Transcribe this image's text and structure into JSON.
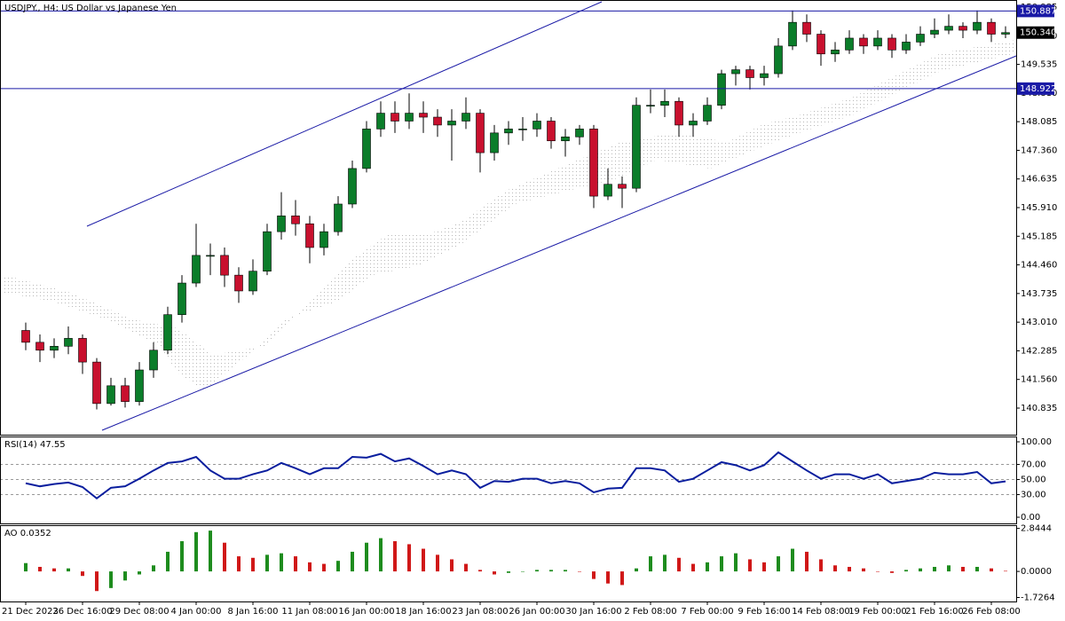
{
  "chart_data": [
    {
      "type": "candlestick",
      "title": "USDJPY., H4:  US Dollar vs Japanese Yen",
      "categories": [
        "21 Dec 2023",
        null,
        null,
        null,
        "26 Dec 16:00",
        null,
        null,
        null,
        "29 Dec 08:00",
        null,
        null,
        null,
        "4 Jan 00:00",
        null,
        null,
        null,
        "8 Jan 16:00",
        null,
        null,
        null,
        "11 Jan 08:00",
        null,
        null,
        null,
        "16 Jan 00:00",
        null,
        null,
        null,
        "18 Jan 16:00",
        null,
        null,
        null,
        "23 Jan 08:00",
        null,
        null,
        null,
        "26 Jan 00:00",
        null,
        null,
        null,
        "30 Jan 16:00",
        null,
        null,
        null,
        "2 Feb 08:00",
        null,
        null,
        null,
        "7 Feb 00:00",
        null,
        null,
        null,
        "9 Feb 16:00",
        null,
        null,
        null,
        "14 Feb 08:00",
        null,
        null,
        null,
        "19 Feb 00:00",
        null,
        null,
        null,
        "21 Feb 16:00",
        null,
        null,
        null,
        "26 Feb 08:00",
        null
      ],
      "open": [
        142.8,
        142.5,
        142.3,
        142.4,
        142.6,
        142.0,
        140.95,
        141.4,
        141.0,
        141.8,
        142.3,
        143.2,
        144.0,
        144.7,
        144.7,
        144.2,
        143.8,
        144.3,
        145.3,
        145.7,
        145.5,
        144.9,
        145.3,
        146.0,
        146.9,
        147.9,
        148.3,
        148.1,
        148.3,
        148.2,
        148.0,
        148.1,
        148.3,
        147.3,
        147.8,
        147.9,
        147.9,
        148.1,
        147.6,
        147.7,
        147.9,
        146.2,
        146.5,
        146.4,
        148.5,
        148.5,
        148.6,
        148.0,
        148.1,
        148.5,
        149.3,
        149.4,
        149.2,
        149.3,
        150.0,
        150.6,
        150.3,
        149.8,
        149.9,
        150.2,
        150.0,
        150.2,
        149.9,
        150.1,
        150.3,
        150.4,
        150.5,
        150.4,
        150.6,
        150.3
      ],
      "high": [
        143.0,
        142.7,
        142.6,
        142.9,
        142.7,
        142.1,
        141.6,
        141.6,
        142.0,
        142.5,
        143.4,
        144.2,
        145.5,
        145.0,
        144.9,
        144.4,
        144.6,
        145.5,
        146.3,
        146.1,
        145.7,
        145.5,
        146.2,
        147.1,
        148.1,
        148.6,
        148.6,
        148.8,
        148.6,
        148.4,
        148.4,
        148.7,
        148.4,
        148.0,
        148.1,
        148.2,
        148.3,
        148.2,
        147.9,
        148.0,
        148.0,
        146.9,
        146.7,
        148.7,
        148.9,
        148.9,
        148.7,
        148.3,
        148.7,
        149.4,
        149.5,
        149.5,
        149.5,
        150.2,
        150.9,
        150.8,
        150.4,
        150.1,
        150.4,
        150.3,
        150.4,
        150.3,
        150.3,
        150.5,
        150.7,
        150.8,
        150.6,
        150.9,
        150.7,
        150.5
      ],
      "low": [
        142.3,
        142.0,
        142.1,
        142.2,
        141.7,
        140.8,
        140.9,
        140.85,
        140.9,
        141.6,
        142.2,
        143.0,
        143.9,
        144.2,
        143.9,
        143.5,
        143.7,
        144.2,
        145.1,
        145.2,
        144.5,
        144.7,
        145.2,
        145.9,
        146.8,
        147.7,
        147.8,
        147.9,
        147.8,
        147.7,
        147.1,
        147.9,
        146.8,
        147.1,
        147.5,
        147.6,
        147.7,
        147.4,
        147.2,
        147.5,
        145.9,
        146.1,
        145.9,
        146.3,
        148.3,
        148.2,
        147.7,
        147.7,
        148.0,
        148.4,
        149.0,
        148.9,
        149.0,
        149.2,
        149.9,
        150.1,
        149.5,
        149.6,
        149.8,
        149.8,
        149.9,
        149.7,
        149.8,
        150.0,
        150.2,
        150.3,
        150.2,
        150.3,
        150.1,
        150.2
      ],
      "close": [
        142.5,
        142.3,
        142.4,
        142.6,
        142.0,
        140.95,
        141.4,
        141.0,
        141.8,
        142.3,
        143.2,
        144.0,
        144.7,
        144.7,
        144.2,
        143.8,
        144.3,
        145.3,
        145.7,
        145.5,
        144.9,
        145.3,
        146.0,
        146.9,
        147.9,
        148.3,
        148.1,
        148.3,
        148.2,
        148.0,
        148.1,
        148.3,
        147.3,
        147.8,
        147.9,
        147.9,
        148.1,
        147.6,
        147.7,
        147.9,
        146.2,
        146.5,
        146.4,
        148.5,
        148.5,
        148.6,
        148.0,
        148.1,
        148.5,
        149.3,
        149.4,
        149.2,
        149.3,
        150.0,
        150.6,
        150.3,
        149.8,
        149.9,
        150.2,
        150.0,
        150.2,
        149.9,
        150.1,
        150.3,
        150.4,
        150.5,
        150.4,
        150.6,
        150.3,
        150.34
      ],
      "up_color": "#0b7d2a",
      "down_color": "#c8102e",
      "ylim": [
        140.161,
        151.165
      ],
      "yticks": [
        {
          "value": 140.835,
          "label": "140.835"
        },
        {
          "value": 141.56,
          "label": "141.560"
        },
        {
          "value": 142.285,
          "label": "142.285"
        },
        {
          "value": 143.01,
          "label": "143.010"
        },
        {
          "value": 143.735,
          "label": "143.735"
        },
        {
          "value": 144.46,
          "label": "144.460"
        },
        {
          "value": 145.185,
          "label": "145.185"
        },
        {
          "value": 145.91,
          "label": "145.910"
        },
        {
          "value": 146.635,
          "label": "146.635"
        },
        {
          "value": 147.36,
          "label": "147.360"
        },
        {
          "value": 148.085,
          "label": "148.085"
        },
        {
          "value": 148.81,
          "label": "148.810"
        },
        {
          "value": 149.535,
          "label": "149.535"
        },
        {
          "value": 150.26,
          "label": "150.260"
        },
        {
          "value": 150.985,
          "label": "150.985"
        }
      ],
      "hlines": [
        150.887,
        148.922
      ],
      "hline_color": "#1a1aa6",
      "last_price": {
        "value": 150.34,
        "label": "150.340"
      }
    },
    {
      "type": "line",
      "title": "RSI(14) 47.55",
      "color": "#0a1e9e",
      "values": [
        45,
        41,
        44,
        46,
        40,
        25,
        39,
        41,
        51,
        62,
        72,
        74,
        80,
        62,
        51,
        51,
        57,
        62,
        72,
        65,
        57,
        65,
        65,
        80,
        79,
        84,
        74,
        78,
        68,
        57,
        62,
        57,
        39,
        48,
        47,
        51,
        51,
        45,
        48,
        45,
        33,
        38,
        39,
        65,
        65,
        62,
        47,
        51,
        62,
        73,
        69,
        62,
        69,
        86,
        74,
        62,
        51,
        57,
        57,
        51,
        57,
        45,
        48,
        51,
        59,
        57,
        57,
        60,
        45,
        47.55
      ],
      "ylim": [
        -8.2,
        105.9
      ],
      "yticks": [
        {
          "value": 100,
          "label": "100.00"
        },
        {
          "value": 70,
          "label": "70.00"
        },
        {
          "value": 50,
          "label": "50.00"
        },
        {
          "value": 30,
          "label": "30.00"
        },
        {
          "value": 0,
          "label": "0.00"
        }
      ],
      "dashed_levels": [
        70,
        50,
        30
      ]
    },
    {
      "type": "bar",
      "title": "AO 0.0352",
      "up_color": "#1e8c1e",
      "down_color": "#d01818",
      "values": [
        0.55,
        0.3,
        0.2,
        0.2,
        -0.3,
        -1.3,
        -1.1,
        -0.6,
        -0.2,
        0.4,
        1.3,
        2.0,
        2.6,
        2.7,
        1.9,
        1.0,
        0.9,
        1.1,
        1.2,
        1.0,
        0.6,
        0.5,
        0.7,
        1.3,
        1.9,
        2.2,
        2.0,
        1.8,
        1.5,
        1.1,
        0.8,
        0.5,
        0.1,
        -0.2,
        -0.1,
        0.0,
        0.1,
        0.1,
        0.1,
        0.0,
        -0.5,
        -0.8,
        -0.9,
        0.2,
        1.0,
        1.1,
        0.9,
        0.5,
        0.6,
        1.0,
        1.2,
        0.8,
        0.6,
        1.0,
        1.5,
        1.3,
        0.8,
        0.4,
        0.3,
        0.2,
        0.0,
        -0.1,
        0.1,
        0.2,
        0.3,
        0.4,
        0.3,
        0.3,
        0.2,
        0.0352
      ],
      "ylim": [
        -1.99,
        3.0
      ],
      "yticks": [
        2.8444,
        {
          "value": 0,
          "label": "0.0000"
        },
        -1.7264
      ]
    }
  ]
}
